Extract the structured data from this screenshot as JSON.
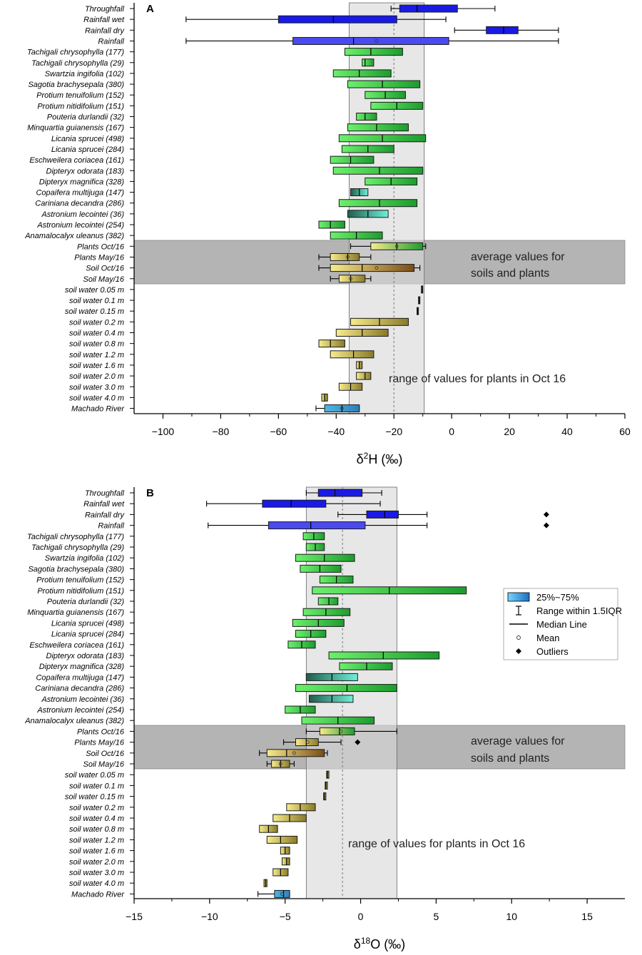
{
  "colors": {
    "rain": "#1a1ae6",
    "rain_mean": "#4a4aee",
    "tree_light": "#6cf06c",
    "tree_dark": "#1d9c2e",
    "teal_light": "#6ff0d9",
    "teal_dark": "#1e5e4c",
    "soil_light": "#f8ec8c",
    "soil_dark": "#8a7a28",
    "soil_brown": "#7a4c18",
    "river": "#4fb7e6",
    "shade": "#e2e2e2",
    "band": "#b4b4b4"
  },
  "chart_data": [
    {
      "panel": "A",
      "type": "box",
      "xlabel": "δ2H (‰)",
      "xlabel_base": "δ",
      "xlabel_sup": "2",
      "xlabel_rest": "H (‰)",
      "xlim": [
        -110,
        60
      ],
      "xticks": [
        -100,
        -80,
        -60,
        -40,
        -20,
        0,
        20,
        40,
        60
      ],
      "shade_range": [
        -35.5,
        -9.5
      ],
      "dashed_line": -20,
      "annotations": [
        "average values for",
        "soils and plants",
        "range of values for plants in Oct 16"
      ],
      "categories": [
        {
          "label": "Throughfall",
          "q1": -18,
          "q3": 2,
          "med": -12,
          "wl": -21,
          "wh": 15,
          "color": "rain"
        },
        {
          "label": "Rainfall wet",
          "q1": -60,
          "q3": -19,
          "med": -41,
          "wl": -92,
          "wh": -2,
          "color": "rain"
        },
        {
          "label": "Rainfall dry",
          "q1": 12,
          "q3": 23,
          "med": 18,
          "wl": 1,
          "wh": 37,
          "color": "rain"
        },
        {
          "label": "Rainfall",
          "q1": -55,
          "q3": -1,
          "med": -34,
          "wl": -92,
          "wh": 37,
          "mean": -26,
          "color": "rain_mean"
        },
        {
          "label": "Tachigali chrysophylla (177)",
          "q1": -37,
          "q3": -17,
          "med": -28,
          "color": "tree"
        },
        {
          "label": "Tachigali chrysophylla (29)",
          "q1": -31,
          "q3": -27,
          "med": -30,
          "color": "tree"
        },
        {
          "label": "Swartzia ingifolia (102)",
          "q1": -41,
          "q3": -21,
          "med": -32,
          "color": "tree"
        },
        {
          "label": "Sagotia brachysepala (380)",
          "q1": -36,
          "q3": -11,
          "med": -24,
          "color": "tree"
        },
        {
          "label": "Protium tenuifolium (152)",
          "q1": -30,
          "q3": -16,
          "med": -23,
          "color": "tree"
        },
        {
          "label": "Protium nitidifolium (151)",
          "q1": -28,
          "q3": -10,
          "med": -19,
          "color": "tree"
        },
        {
          "label": "Pouteria durlandii (32)",
          "q1": -33,
          "q3": -26,
          "med": -30,
          "color": "tree"
        },
        {
          "label": "Minquartia guianensis (167)",
          "q1": -36,
          "q3": -15,
          "med": -26,
          "color": "tree"
        },
        {
          "label": "Licania sprucei (498)",
          "q1": -39,
          "q3": -9,
          "med": -24,
          "color": "tree"
        },
        {
          "label": "Licania sprucei (284)",
          "q1": -38,
          "q3": -20,
          "med": -29,
          "color": "tree"
        },
        {
          "label": "Eschweilera coriacea (161)",
          "q1": -42,
          "q3": -27,
          "med": -35,
          "color": "tree"
        },
        {
          "label": "Dipteryx odorata (183)",
          "q1": -41,
          "q3": -10,
          "med": -25,
          "color": "tree"
        },
        {
          "label": "Dipteryx magnifica (328)",
          "q1": -30,
          "q3": -12,
          "med": -21,
          "color": "tree"
        },
        {
          "label": "Copaifera multijuga (147)",
          "q1": -35,
          "q3": -29,
          "med": -32,
          "color": "teal"
        },
        {
          "label": "Cariniana decandra (286)",
          "q1": -39,
          "q3": -12,
          "med": -25,
          "color": "tree"
        },
        {
          "label": "Astronium lecointei (36)",
          "q1": -36,
          "q3": -22,
          "med": -29,
          "color": "teal"
        },
        {
          "label": "Astronium lecointei (254)",
          "q1": -46,
          "q3": -37,
          "med": -42,
          "color": "tree"
        },
        {
          "label": "Anamalocalyx uleanus (382)",
          "q1": -42,
          "q3": -24,
          "med": -33,
          "color": "tree"
        },
        {
          "label": "Plants Oct/16",
          "q1": -28,
          "q3": -10,
          "med": -19,
          "wl": -35,
          "wh": -9,
          "mean": -19,
          "color": "plants"
        },
        {
          "label": "Plants May/16",
          "q1": -42,
          "q3": -32,
          "med": -36,
          "wl": -46,
          "wh": -28,
          "mean": -36,
          "color": "soil"
        },
        {
          "label": "Soil Oct/16",
          "q1": -42,
          "q3": -13,
          "med": -31,
          "wl": -46,
          "wh": -11,
          "mean": -26,
          "color": "soilbrown"
        },
        {
          "label": "Soil May/16",
          "q1": -39,
          "q3": -30,
          "med": -35,
          "wl": -42,
          "wh": -28,
          "mean": -35,
          "color": "soil"
        },
        {
          "label": "soil water 0.05 m",
          "q1": -10.5,
          "q3": -10,
          "med": -10.2,
          "color": "soil"
        },
        {
          "label": "soil water 0.1 m",
          "q1": -11.5,
          "q3": -11,
          "med": -11.2,
          "color": "soil"
        },
        {
          "label": "soil water 0.15 m",
          "q1": -12,
          "q3": -11.5,
          "med": -11.8,
          "color": "soil"
        },
        {
          "label": "soil water 0.2 m",
          "q1": -35,
          "q3": -15,
          "med": -25,
          "color": "soil"
        },
        {
          "label": "soil water 0.4 m",
          "q1": -40,
          "q3": -22,
          "med": -31,
          "color": "soil"
        },
        {
          "label": "soil water 0.8 m",
          "q1": -46,
          "q3": -37,
          "med": -42,
          "color": "soil"
        },
        {
          "label": "soil water 1.2 m",
          "q1": -42,
          "q3": -27,
          "med": -34,
          "color": "soil"
        },
        {
          "label": "soil water 1.6 m",
          "q1": -33,
          "q3": -31,
          "med": -32,
          "color": "soil"
        },
        {
          "label": "soil water 2.0 m",
          "q1": -33,
          "q3": -28,
          "med": -30,
          "color": "soil"
        },
        {
          "label": "soil water 3.0 m",
          "q1": -39,
          "q3": -31,
          "med": -35,
          "color": "soil"
        },
        {
          "label": "soil water 4.0 m",
          "q1": -45,
          "q3": -43,
          "med": -44,
          "color": "soil"
        },
        {
          "label": "Machado River",
          "q1": -44,
          "q3": -32,
          "med": -38,
          "wl": -47,
          "wh": -32,
          "mean": -38,
          "color": "river"
        }
      ]
    },
    {
      "panel": "B",
      "type": "box",
      "xlabel": "δ18O (‰)",
      "xlabel_base": "δ",
      "xlabel_sup": "18",
      "xlabel_rest": "O (‰)",
      "xlim": [
        -15,
        17.5
      ],
      "xticks": [
        -15,
        -10,
        -5,
        0,
        5,
        10,
        15
      ],
      "shade_range": [
        -3.6,
        2.4
      ],
      "dashed_line": -1.2,
      "annotations": [
        "average values for",
        "soils and plants",
        "range of values for plants in Oct 16"
      ],
      "legend": [
        "25%~75%",
        "Range within 1.5IQR",
        "Median Line",
        "Mean",
        "Outliers"
      ],
      "categories": [
        {
          "label": "Throughfall",
          "q1": -2.8,
          "q3": 0.1,
          "med": -1.7,
          "wl": -3.6,
          "wh": 1.4,
          "mean": -1.7,
          "color": "rain"
        },
        {
          "label": "Rainfall wet",
          "q1": -6.5,
          "q3": -2.3,
          "med": -4.6,
          "wl": -10.2,
          "wh": 1.3,
          "color": "rain"
        },
        {
          "label": "Rainfall dry",
          "q1": 0.4,
          "q3": 2.5,
          "med": 1.6,
          "wl": -1.5,
          "wh": 4.4,
          "outlier": 12.3,
          "color": "rain"
        },
        {
          "label": "Rainfall",
          "q1": -6.1,
          "q3": 0.3,
          "med": -3.3,
          "wl": -10.1,
          "wh": 4.4,
          "outlier": 12.3,
          "color": "rain_mean"
        },
        {
          "label": "Tachigali chrysophylla (177)",
          "q1": -3.8,
          "q3": -2.4,
          "med": -3.1,
          "color": "tree"
        },
        {
          "label": "Tachigali chrysophylla (29)",
          "q1": -3.6,
          "q3": -2.4,
          "med": -3.0,
          "color": "tree"
        },
        {
          "label": "Swartzia ingifolia (102)",
          "q1": -4.3,
          "q3": -0.4,
          "med": -2.4,
          "color": "tree"
        },
        {
          "label": "Sagotia brachysepala (380)",
          "q1": -4.0,
          "q3": -1.3,
          "med": -2.7,
          "color": "tree"
        },
        {
          "label": "Protium tenuifolium (152)",
          "q1": -2.7,
          "q3": -0.5,
          "med": -1.6,
          "color": "tree"
        },
        {
          "label": "Protium nitidifolium (151)",
          "q1": -3.2,
          "q3": 7.0,
          "med": 1.9,
          "color": "tree"
        },
        {
          "label": "Pouteria durlandii (32)",
          "q1": -2.8,
          "q3": -1.5,
          "med": -2.1,
          "color": "tree"
        },
        {
          "label": "Minquartia guianensis (167)",
          "q1": -3.8,
          "q3": -0.7,
          "med": -2.3,
          "color": "tree"
        },
        {
          "label": "Licania sprucei (498)",
          "q1": -4.5,
          "q3": -1.1,
          "med": -2.8,
          "color": "tree"
        },
        {
          "label": "Licania sprucei (284)",
          "q1": -4.3,
          "q3": -2.3,
          "med": -3.3,
          "color": "tree"
        },
        {
          "label": "Eschweilera coriacea (161)",
          "q1": -4.8,
          "q3": -3.0,
          "med": -3.9,
          "color": "tree"
        },
        {
          "label": "Dipteryx odorata (183)",
          "q1": -2.1,
          "q3": 5.2,
          "med": 1.5,
          "color": "tree"
        },
        {
          "label": "Dipteryx magnifica (328)",
          "q1": -1.4,
          "q3": 2.1,
          "med": 0.4,
          "color": "tree"
        },
        {
          "label": "Copaifera multijuga (147)",
          "q1": -3.6,
          "q3": -0.2,
          "med": -1.9,
          "color": "teal"
        },
        {
          "label": "Cariniana decandra (286)",
          "q1": -4.3,
          "q3": 2.4,
          "med": -0.9,
          "color": "tree"
        },
        {
          "label": "Astronium lecointei (36)",
          "q1": -3.4,
          "q3": -0.5,
          "med": -1.9,
          "color": "teal"
        },
        {
          "label": "Astronium lecointei (254)",
          "q1": -5.0,
          "q3": -3.0,
          "med": -4.0,
          "color": "tree"
        },
        {
          "label": "Anamalocalyx uleanus (382)",
          "q1": -3.9,
          "q3": 0.9,
          "med": -1.5,
          "color": "tree"
        },
        {
          "label": "Plants Oct/16",
          "q1": -2.7,
          "q3": -0.4,
          "med": -1.4,
          "wl": -3.6,
          "wh": 2.4,
          "mean": -1.3,
          "color": "plants"
        },
        {
          "label": "Plants May/16",
          "q1": -4.3,
          "q3": -2.8,
          "med": -3.6,
          "wl": -5.1,
          "wh": -1.3,
          "mean": -3.5,
          "outlier": -0.2,
          "color": "soil"
        },
        {
          "label": "Soil Oct/16",
          "q1": -6.2,
          "q3": -2.4,
          "med": -4.9,
          "wl": -6.7,
          "wh": -2.2,
          "mean": -4.4,
          "color": "soilbrown"
        },
        {
          "label": "Soil May/16",
          "q1": -5.9,
          "q3": -4.7,
          "med": -5.3,
          "wl": -6.2,
          "wh": -4.4,
          "mean": -5.3,
          "color": "soil"
        },
        {
          "label": "soil water 0.05 m",
          "q1": -2.25,
          "q3": -2.1,
          "med": -2.2,
          "color": "soil"
        },
        {
          "label": "soil water 0.1 m",
          "q1": -2.35,
          "q3": -2.2,
          "med": -2.3,
          "color": "soil"
        },
        {
          "label": "soil water 0.15 m",
          "q1": -2.45,
          "q3": -2.3,
          "med": -2.4,
          "color": "soil"
        },
        {
          "label": "soil water 0.2 m",
          "q1": -4.9,
          "q3": -3.0,
          "med": -4.0,
          "color": "soil"
        },
        {
          "label": "soil water 0.4 m",
          "q1": -5.8,
          "q3": -3.6,
          "med": -4.7,
          "color": "soil"
        },
        {
          "label": "soil water 0.8 m",
          "q1": -6.7,
          "q3": -5.5,
          "med": -6.1,
          "color": "soil"
        },
        {
          "label": "soil water 1.2 m",
          "q1": -6.2,
          "q3": -4.2,
          "med": -5.3,
          "color": "soil"
        },
        {
          "label": "soil water 1.6 m",
          "q1": -5.3,
          "q3": -4.7,
          "med": -5.0,
          "color": "soil"
        },
        {
          "label": "soil water 2.0 m",
          "q1": -5.2,
          "q3": -4.7,
          "med": -4.9,
          "color": "soil"
        },
        {
          "label": "soil water 3.0 m",
          "q1": -5.8,
          "q3": -4.8,
          "med": -5.3,
          "color": "soil"
        },
        {
          "label": "soil water 4.0 m",
          "q1": -6.4,
          "q3": -6.2,
          "med": -6.3,
          "color": "soil"
        },
        {
          "label": "Machado River",
          "q1": -5.7,
          "q3": -4.7,
          "med": -5.1,
          "wl": -6.8,
          "wh": -4.7,
          "mean": -5.2,
          "color": "river"
        }
      ]
    }
  ]
}
